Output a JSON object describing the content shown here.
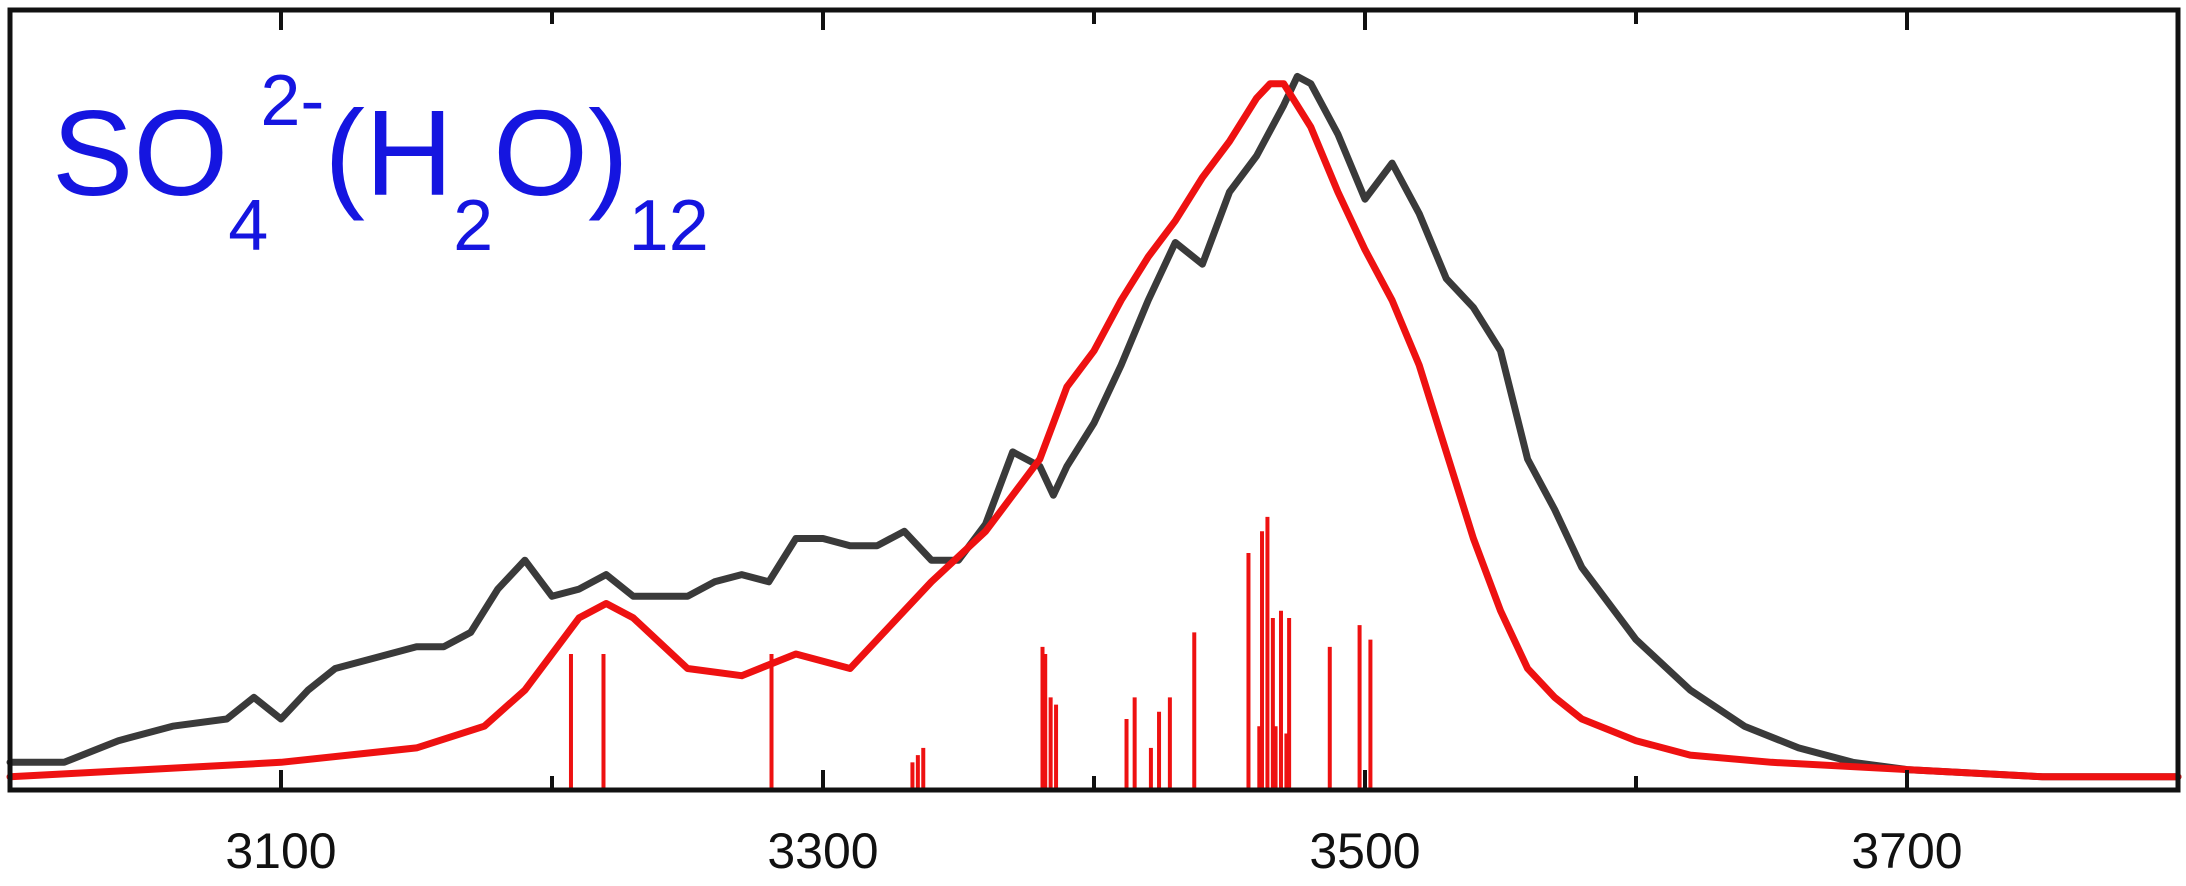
{
  "chart_data": {
    "type": "line",
    "title_parts": {
      "so": "SO",
      "so_sub": "4",
      "charge_sup": "2-",
      "paren_open": "(H",
      "h_sub": "2",
      "paren_close": "O)",
      "n_sub": "12"
    },
    "xlabel": "",
    "ylabel": "",
    "xlim": [
      3000,
      3800
    ],
    "ylim": [
      0,
      1.0
    ],
    "xticks": [
      3100,
      3300,
      3500,
      3700
    ],
    "xtick_labels": [
      "3100",
      "3300",
      "3500",
      "3700"
    ],
    "minor_xticks": [
      3000,
      3200,
      3400,
      3600,
      3800
    ],
    "grid": false,
    "legend": "none",
    "series": [
      {
        "style": "line",
        "color": "#3a3a3a",
        "x": [
          3000,
          3020,
          3040,
          3060,
          3080,
          3090,
          3100,
          3110,
          3120,
          3130,
          3140,
          3150,
          3160,
          3170,
          3180,
          3190,
          3200,
          3210,
          3220,
          3230,
          3240,
          3250,
          3260,
          3270,
          3280,
          3290,
          3300,
          3310,
          3320,
          3330,
          3340,
          3350,
          3360,
          3370,
          3380,
          3385,
          3390,
          3400,
          3410,
          3420,
          3430,
          3440,
          3450,
          3460,
          3470,
          3475,
          3480,
          3490,
          3500,
          3510,
          3520,
          3530,
          3540,
          3550,
          3560,
          3570,
          3580,
          3590,
          3600,
          3620,
          3640,
          3660,
          3680,
          3700,
          3750,
          3800
        ],
        "y": [
          0.03,
          0.03,
          0.06,
          0.08,
          0.09,
          0.12,
          0.09,
          0.13,
          0.16,
          0.17,
          0.18,
          0.19,
          0.19,
          0.21,
          0.27,
          0.31,
          0.26,
          0.27,
          0.29,
          0.26,
          0.26,
          0.26,
          0.28,
          0.29,
          0.28,
          0.34,
          0.34,
          0.33,
          0.33,
          0.35,
          0.31,
          0.31,
          0.36,
          0.46,
          0.44,
          0.4,
          0.44,
          0.5,
          0.58,
          0.67,
          0.75,
          0.72,
          0.82,
          0.87,
          0.94,
          0.98,
          0.97,
          0.9,
          0.81,
          0.86,
          0.79,
          0.7,
          0.66,
          0.6,
          0.45,
          0.38,
          0.3,
          0.25,
          0.2,
          0.13,
          0.08,
          0.05,
          0.03,
          0.02,
          0.01,
          0.01
        ]
      },
      {
        "style": "line",
        "color": "#ee1111",
        "x": [
          3000,
          3050,
          3100,
          3150,
          3175,
          3190,
          3200,
          3210,
          3220,
          3230,
          3250,
          3270,
          3290,
          3300,
          3310,
          3320,
          3340,
          3360,
          3380,
          3385,
          3390,
          3400,
          3410,
          3420,
          3430,
          3440,
          3450,
          3460,
          3465,
          3470,
          3480,
          3490,
          3500,
          3510,
          3520,
          3530,
          3540,
          3550,
          3560,
          3570,
          3580,
          3600,
          3620,
          3650,
          3700,
          3750,
          3800
        ],
        "y": [
          0.01,
          0.02,
          0.03,
          0.05,
          0.08,
          0.13,
          0.18,
          0.23,
          0.25,
          0.23,
          0.16,
          0.15,
          0.18,
          0.17,
          0.16,
          0.2,
          0.28,
          0.35,
          0.45,
          0.5,
          0.55,
          0.6,
          0.67,
          0.73,
          0.78,
          0.84,
          0.89,
          0.95,
          0.97,
          0.97,
          0.91,
          0.82,
          0.74,
          0.67,
          0.58,
          0.46,
          0.34,
          0.24,
          0.16,
          0.12,
          0.09,
          0.06,
          0.04,
          0.03,
          0.02,
          0.01,
          0.01
        ]
      },
      {
        "style": "sticks",
        "color": "#ee1111",
        "x": [
          3207,
          3219,
          3281,
          3333,
          3335,
          3337,
          3381,
          3382,
          3384,
          3386,
          3412,
          3415,
          3421,
          3424,
          3428,
          3437,
          3457,
          3461,
          3462,
          3464,
          3466,
          3467,
          3469,
          3471,
          3472,
          3487,
          3498,
          3502
        ],
        "y": [
          0.18,
          0.18,
          0.18,
          0.03,
          0.04,
          0.05,
          0.19,
          0.18,
          0.12,
          0.11,
          0.09,
          0.12,
          0.05,
          0.1,
          0.12,
          0.21,
          0.32,
          0.08,
          0.35,
          0.37,
          0.23,
          0.08,
          0.24,
          0.07,
          0.23,
          0.19,
          0.22,
          0.2
        ]
      }
    ]
  }
}
